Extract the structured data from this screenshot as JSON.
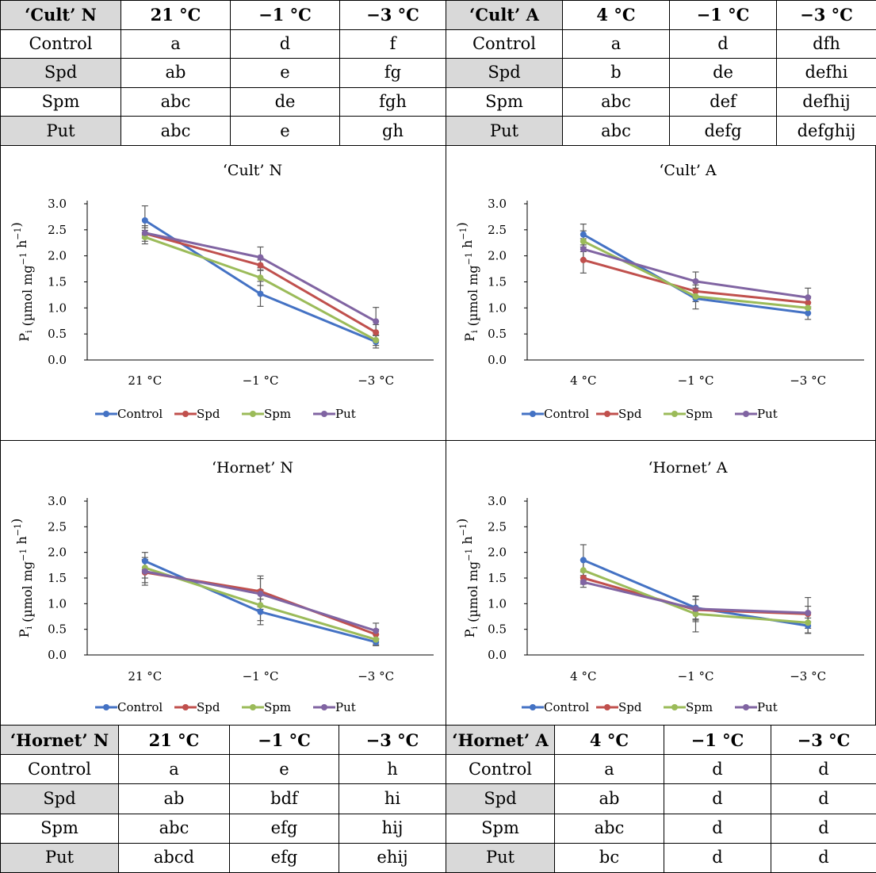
{
  "tables": [
    {
      "cultivar_label": "‘Cult’ N",
      "columns": [
        "21 °C",
        "−1 °C",
        "−3 °C"
      ],
      "rows": [
        {
          "treatment": "Control",
          "cells": [
            "a",
            "d",
            "f"
          ]
        },
        {
          "treatment": "Spd",
          "cells": [
            "ab",
            "e",
            "fg"
          ]
        },
        {
          "treatment": "Spm",
          "cells": [
            "abc",
            "de",
            "fgh"
          ]
        },
        {
          "treatment": "Put",
          "cells": [
            "abc",
            "e",
            "gh"
          ]
        }
      ]
    },
    {
      "cultivar_label": "‘Cult’ A",
      "columns": [
        "4 °C",
        "−1 °C",
        "−3 °C"
      ],
      "rows": [
        {
          "treatment": "Control",
          "cells": [
            "a",
            "d",
            "dfh"
          ]
        },
        {
          "treatment": "Spd",
          "cells": [
            "b",
            "de",
            "defhi"
          ]
        },
        {
          "treatment": "Spm",
          "cells": [
            "abc",
            "def",
            "defhij"
          ]
        },
        {
          "treatment": "Put",
          "cells": [
            "abc",
            "defg",
            "defghij"
          ]
        }
      ]
    },
    {
      "cultivar_label": "‘Hornet’ N",
      "columns": [
        "21 °C",
        "−1 °C",
        "−3 °C"
      ],
      "rows": [
        {
          "treatment": "Control",
          "cells": [
            "a",
            "e",
            "h"
          ]
        },
        {
          "treatment": "Spd",
          "cells": [
            "ab",
            "bdf",
            "hi"
          ]
        },
        {
          "treatment": "Spm",
          "cells": [
            "abc",
            "efg",
            "hij"
          ]
        },
        {
          "treatment": "Put",
          "cells": [
            "abcd",
            "efg",
            "ehij"
          ]
        }
      ]
    },
    {
      "cultivar_label": "‘Hornet’ A",
      "columns": [
        "4 °C",
        "−1 °C",
        "−3 °C"
      ],
      "rows": [
        {
          "treatment": "Control",
          "cells": [
            "a",
            "d",
            "d"
          ]
        },
        {
          "treatment": "Spd",
          "cells": [
            "ab",
            "d",
            "d"
          ]
        },
        {
          "treatment": "Spm",
          "cells": [
            "abc",
            "d",
            "d"
          ]
        },
        {
          "treatment": "Put",
          "cells": [
            "bc",
            "d",
            "d"
          ]
        }
      ]
    }
  ],
  "chart_data": [
    {
      "type": "line",
      "title": "‘Cult’ N",
      "xlabel": "",
      "ylabel_main": "P",
      "ylabel_sub": "i",
      "ylabel_rest": " (µmol mg",
      "ylabel_sup1": "−1",
      "ylabel_mid": " h",
      "ylabel_sup2": "−1",
      "ylabel_end": ")",
      "ylim": [
        0,
        3.0
      ],
      "yticks": [
        "0.0",
        "0.5",
        "1.0",
        "1.5",
        "2.0",
        "2.5",
        "3.0"
      ],
      "categories": [
        "21 °C",
        "−1 °C",
        "−3 °C"
      ],
      "series": [
        {
          "name": "Control",
          "color": "#4472c4",
          "values": [
            2.68,
            1.27,
            0.35
          ],
          "errors": [
            0.28,
            0.24,
            0.12
          ]
        },
        {
          "name": "Spd",
          "color": "#c0504d",
          "values": [
            2.43,
            1.82,
            0.53
          ],
          "errors": [
            0.15,
            0.1,
            0.15
          ]
        },
        {
          "name": "Spm",
          "color": "#9bbb59",
          "values": [
            2.36,
            1.58,
            0.38
          ],
          "errors": [
            0.13,
            0.15,
            0.1
          ]
        },
        {
          "name": "Put",
          "color": "#8064a2",
          "values": [
            2.44,
            1.97,
            0.74
          ],
          "errors": [
            0.1,
            0.2,
            0.27
          ]
        }
      ],
      "grid": false,
      "legend_position": "bottom"
    },
    {
      "type": "line",
      "title": "‘Cult’ A",
      "xlabel": "",
      "ylabel_main": "P",
      "ylabel_sub": "i",
      "ylabel_rest": " (µmol mg",
      "ylabel_sup1": "−1",
      "ylabel_mid": " h",
      "ylabel_sup2": "−1",
      "ylabel_end": ")",
      "ylim": [
        0,
        3.0
      ],
      "yticks": [
        "0.0",
        "0.5",
        "1.0",
        "1.5",
        "2.0",
        "2.5",
        "3.0"
      ],
      "categories": [
        "4 °C",
        "−1 °C",
        "−3 °C"
      ],
      "series": [
        {
          "name": "Control",
          "color": "#4472c4",
          "values": [
            2.41,
            1.18,
            0.9
          ],
          "errors": [
            0.2,
            0.2,
            0.12
          ]
        },
        {
          "name": "Spd",
          "color": "#c0504d",
          "values": [
            1.92,
            1.32,
            1.1
          ],
          "errors": [
            0.25,
            0.12,
            0.12
          ]
        },
        {
          "name": "Spm",
          "color": "#9bbb59",
          "values": [
            2.28,
            1.22,
            1.0
          ],
          "errors": [
            0.2,
            0.1,
            0.1
          ]
        },
        {
          "name": "Put",
          "color": "#8064a2",
          "values": [
            2.13,
            1.51,
            1.2
          ],
          "errors": [
            0.2,
            0.18,
            0.18
          ]
        }
      ],
      "grid": false,
      "legend_position": "bottom"
    },
    {
      "type": "line",
      "title": "‘Hornet’ N",
      "xlabel": "",
      "ylabel_main": "P",
      "ylabel_sub": "i",
      "ylabel_rest": " (µmol mg",
      "ylabel_sup1": "−1",
      "ylabel_mid": " h",
      "ylabel_sup2": "−1",
      "ylabel_end": ")",
      "ylim": [
        0,
        3.0
      ],
      "yticks": [
        "0.0",
        "0.5",
        "1.0",
        "1.5",
        "2.0",
        "2.5",
        "3.0"
      ],
      "categories": [
        "21 °C",
        "−1 °C",
        "−3 °C"
      ],
      "series": [
        {
          "name": "Control",
          "color": "#4472c4",
          "values": [
            1.83,
            0.84,
            0.25
          ],
          "errors": [
            0.17,
            0.25,
            0.07
          ]
        },
        {
          "name": "Spd",
          "color": "#c0504d",
          "values": [
            1.61,
            1.24,
            0.4
          ],
          "errors": [
            0.25,
            0.3,
            0.1
          ]
        },
        {
          "name": "Spm",
          "color": "#9bbb59",
          "values": [
            1.7,
            0.97,
            0.3
          ],
          "errors": [
            0.2,
            0.3,
            0.1
          ]
        },
        {
          "name": "Put",
          "color": "#8064a2",
          "values": [
            1.63,
            1.19,
            0.47
          ],
          "errors": [
            0.22,
            0.3,
            0.15
          ]
        }
      ],
      "grid": false,
      "legend_position": "bottom"
    },
    {
      "type": "line",
      "title": "‘Hornet’ A",
      "xlabel": "",
      "ylabel_main": "P",
      "ylabel_sub": "i",
      "ylabel_rest": " (µmol mg",
      "ylabel_sup1": "−1",
      "ylabel_mid": " h",
      "ylabel_sup2": "−1",
      "ylabel_end": ")",
      "ylim": [
        0,
        3.0
      ],
      "yticks": [
        "0.0",
        "0.5",
        "1.0",
        "1.5",
        "2.0",
        "2.5",
        "3.0"
      ],
      "categories": [
        "4 °C",
        "−1 °C",
        "−3 °C"
      ],
      "series": [
        {
          "name": "Control",
          "color": "#4472c4",
          "values": [
            1.85,
            0.92,
            0.57
          ],
          "errors": [
            0.3,
            0.22,
            0.15
          ]
        },
        {
          "name": "Spd",
          "color": "#c0504d",
          "values": [
            1.5,
            0.88,
            0.8
          ],
          "errors": [
            0.12,
            0.2,
            0.15
          ]
        },
        {
          "name": "Spm",
          "color": "#9bbb59",
          "values": [
            1.65,
            0.8,
            0.63
          ],
          "errors": [
            0.2,
            0.35,
            0.2
          ]
        },
        {
          "name": "Put",
          "color": "#8064a2",
          "values": [
            1.42,
            0.9,
            0.82
          ],
          "errors": [
            0.1,
            0.25,
            0.3
          ]
        }
      ],
      "grid": false,
      "legend_position": "bottom"
    }
  ]
}
